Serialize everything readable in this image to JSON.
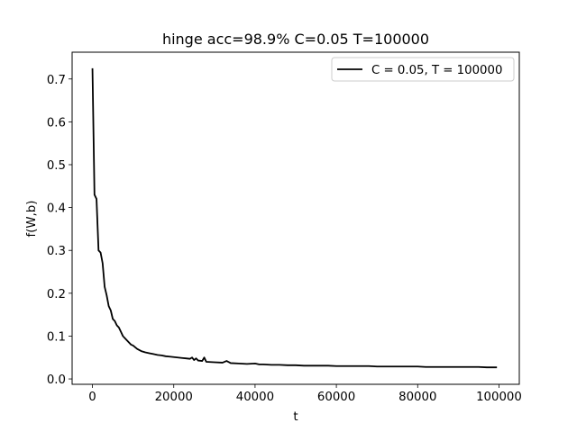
{
  "chart_data": {
    "type": "line",
    "title": "hinge acc=98.9% C=0.05 T=100000",
    "xlabel": "t",
    "ylabel": "f(W,b)",
    "xlim": [
      -5000,
      105000
    ],
    "ylim": [
      -0.0125,
      0.7625
    ],
    "xticks": [
      0,
      20000,
      40000,
      60000,
      80000,
      100000
    ],
    "xtick_labels": [
      "0",
      "20000",
      "40000",
      "60000",
      "80000",
      "100000"
    ],
    "yticks": [
      0.0,
      0.1,
      0.2,
      0.3,
      0.4,
      0.5,
      0.6,
      0.7
    ],
    "ytick_labels": [
      "0.0",
      "0.1",
      "0.2",
      "0.3",
      "0.4",
      "0.5",
      "0.6",
      "0.7"
    ],
    "grid": false,
    "legend_position": "top-right",
    "series": [
      {
        "name": "C = 0.05, T = 100000",
        "color": "#000000",
        "x": [
          0,
          500,
          1000,
          1500,
          2000,
          2500,
          3000,
          3500,
          4000,
          4500,
          5000,
          5500,
          6000,
          6500,
          7000,
          7500,
          8000,
          8500,
          9000,
          9500,
          10000,
          11000,
          12000,
          13000,
          14000,
          15000,
          16000,
          17000,
          18000,
          19000,
          20000,
          21000,
          22000,
          23000,
          24000,
          24500,
          25000,
          25500,
          26000,
          27000,
          27500,
          28000,
          30000,
          32000,
          33000,
          34000,
          36000,
          38000,
          40000,
          41000,
          42000,
          44000,
          46000,
          48000,
          50000,
          52000,
          55000,
          58000,
          60000,
          62000,
          65000,
          68000,
          70000,
          72000,
          75000,
          78000,
          80000,
          82000,
          85000,
          88000,
          90000,
          92000,
          95000,
          97000,
          99500
        ],
        "y": [
          0.725,
          0.43,
          0.42,
          0.3,
          0.295,
          0.27,
          0.215,
          0.195,
          0.17,
          0.16,
          0.14,
          0.135,
          0.125,
          0.12,
          0.11,
          0.1,
          0.095,
          0.09,
          0.085,
          0.08,
          0.078,
          0.07,
          0.065,
          0.062,
          0.06,
          0.058,
          0.056,
          0.055,
          0.053,
          0.052,
          0.051,
          0.05,
          0.049,
          0.048,
          0.047,
          0.05,
          0.044,
          0.048,
          0.043,
          0.042,
          0.05,
          0.04,
          0.039,
          0.038,
          0.042,
          0.037,
          0.036,
          0.035,
          0.036,
          0.034,
          0.034,
          0.033,
          0.033,
          0.032,
          0.032,
          0.031,
          0.031,
          0.031,
          0.03,
          0.03,
          0.03,
          0.03,
          0.029,
          0.029,
          0.029,
          0.029,
          0.029,
          0.028,
          0.028,
          0.028,
          0.028,
          0.028,
          0.028,
          0.027,
          0.027
        ]
      }
    ]
  }
}
